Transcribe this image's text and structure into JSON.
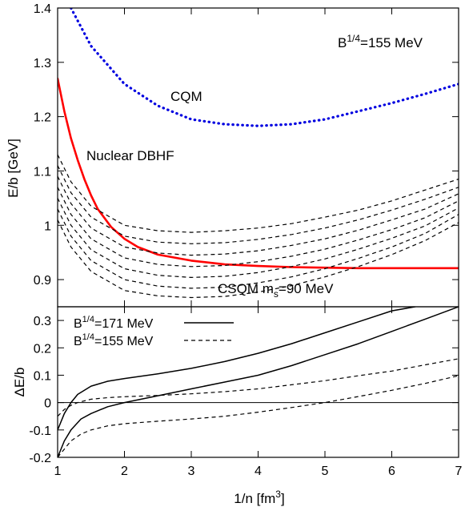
{
  "chart_data": [
    {
      "type": "line",
      "xlim": [
        1,
        7
      ],
      "ylim": [
        0.85,
        1.4
      ],
      "ylabel": "E/b [GeV]",
      "yticks": [
        "0.9",
        "1",
        "1.1",
        "1.2",
        "1.3",
        "1.4"
      ],
      "ytick_values": [
        0.9,
        1.0,
        1.1,
        1.2,
        1.3,
        1.4
      ],
      "annotations": {
        "b_base": "B",
        "b_exp": "1/4",
        "b_rest": "=155 MeV",
        "cqm": "CQM",
        "dbhf": "Nuclear DBHF",
        "csqm_main": "CSQM m",
        "csqm_sub": "s",
        "csqm_rest": "=90 MeV"
      },
      "series": [
        {
          "label": "CQM",
          "color": "#0000e0",
          "style": "dotted",
          "x": [
            1.2,
            1.5,
            2.0,
            2.5,
            3.0,
            3.5,
            4.0,
            4.5,
            5.0,
            5.5,
            6.0,
            6.5,
            7.0
          ],
          "y": [
            1.4,
            1.33,
            1.26,
            1.22,
            1.195,
            1.186,
            1.183,
            1.186,
            1.195,
            1.21,
            1.225,
            1.242,
            1.26
          ]
        },
        {
          "label": "Nuclear DBHF",
          "color": "#ff0000",
          "style": "solid",
          "x": [
            1.0,
            1.1,
            1.2,
            1.3,
            1.4,
            1.5,
            1.6,
            1.8,
            2.0,
            2.2,
            2.5,
            3.0,
            3.5,
            4.0,
            4.5,
            5.0,
            5.5,
            6.0,
            7.0
          ],
          "y": [
            1.27,
            1.21,
            1.16,
            1.12,
            1.085,
            1.055,
            1.03,
            0.997,
            0.975,
            0.96,
            0.946,
            0.935,
            0.928,
            0.925,
            0.923,
            0.922,
            0.921,
            0.921,
            0.921
          ]
        },
        {
          "color": "#000000",
          "style": "dashed",
          "x": [
            1.0,
            1.2,
            1.5,
            2.0,
            2.5,
            3.0,
            3.5,
            4.0,
            4.5,
            5.0,
            5.5,
            6.0,
            6.5,
            7.0
          ],
          "y": [
            1.13,
            1.08,
            1.035,
            1.0,
            0.99,
            0.987,
            0.99,
            0.995,
            1.003,
            1.015,
            1.028,
            1.045,
            1.065,
            1.085
          ]
        },
        {
          "color": "#000000",
          "style": "dashed",
          "x": [
            1.0,
            1.2,
            1.5,
            2.0,
            2.5,
            3.0,
            3.5,
            4.0,
            4.5,
            5.0,
            5.5,
            6.0,
            6.5,
            7.0
          ],
          "y": [
            1.11,
            1.06,
            1.015,
            0.98,
            0.969,
            0.966,
            0.968,
            0.974,
            0.983,
            0.995,
            1.01,
            1.028,
            1.048,
            1.07
          ]
        },
        {
          "color": "#000000",
          "style": "dashed",
          "x": [
            1.0,
            1.2,
            1.5,
            2.0,
            2.5,
            3.0,
            3.5,
            4.0,
            4.5,
            5.0,
            5.5,
            6.0,
            6.5,
            7.0
          ],
          "y": [
            1.09,
            1.04,
            0.995,
            0.96,
            0.949,
            0.945,
            0.947,
            0.953,
            0.963,
            0.975,
            0.991,
            1.01,
            1.03,
            1.058
          ]
        },
        {
          "color": "#000000",
          "style": "dashed",
          "x": [
            1.0,
            1.2,
            1.5,
            2.0,
            2.5,
            3.0,
            3.5,
            4.0,
            4.5,
            5.0,
            5.5,
            6.0,
            6.5,
            7.0
          ],
          "y": [
            1.07,
            1.02,
            0.975,
            0.94,
            0.928,
            0.924,
            0.926,
            0.933,
            0.943,
            0.956,
            0.973,
            0.992,
            1.014,
            1.045
          ]
        },
        {
          "color": "#000000",
          "style": "dashed",
          "x": [
            1.0,
            1.2,
            1.5,
            2.0,
            2.5,
            3.0,
            3.5,
            4.0,
            4.5,
            5.0,
            5.5,
            6.0,
            6.5,
            7.0
          ],
          "y": [
            1.05,
            1.0,
            0.955,
            0.92,
            0.908,
            0.904,
            0.906,
            0.913,
            0.924,
            0.938,
            0.956,
            0.976,
            0.999,
            1.032
          ]
        },
        {
          "color": "#000000",
          "style": "dashed",
          "x": [
            1.0,
            1.2,
            1.5,
            2.0,
            2.5,
            3.0,
            3.5,
            4.0,
            4.5,
            5.0,
            5.5,
            6.0,
            6.5,
            7.0
          ],
          "y": [
            1.03,
            0.98,
            0.935,
            0.9,
            0.888,
            0.884,
            0.886,
            0.894,
            0.905,
            0.92,
            0.939,
            0.96,
            0.985,
            1.02
          ]
        },
        {
          "color": "#000000",
          "style": "dashed",
          "x": [
            1.0,
            1.2,
            1.5,
            2.0,
            2.5,
            3.0,
            3.5,
            4.0,
            4.5,
            5.0,
            5.5,
            6.0,
            6.5,
            7.0
          ],
          "y": [
            1.01,
            0.96,
            0.915,
            0.88,
            0.87,
            0.867,
            0.869,
            0.877,
            0.889,
            0.905,
            0.924,
            0.946,
            0.972,
            1.005
          ]
        }
      ]
    },
    {
      "type": "line",
      "xlim": [
        1,
        7
      ],
      "ylim": [
        -0.2,
        0.35
      ],
      "xlabel": "1/n [fm",
      "xlabel_sup": "3",
      "xlabel_end": "]",
      "ylabel": "ΔE/b",
      "xticks": [
        "1",
        "2",
        "3",
        "4",
        "5",
        "6",
        "7"
      ],
      "xtick_values": [
        1,
        2,
        3,
        4,
        5,
        6,
        7
      ],
      "yticks": [
        "-0.2",
        "-0.1",
        "0",
        "0.1",
        "0.2",
        "0.3"
      ],
      "ytick_values": [
        -0.2,
        -0.1,
        0,
        0.1,
        0.2,
        0.3
      ],
      "zero_line": true,
      "legend": [
        {
          "base": "B",
          "sup": "1/4",
          "rest": "=171 MeV",
          "style": "solid"
        },
        {
          "base": "B",
          "sup": "1/4",
          "rest": "=155 MeV",
          "style": "dashed"
        }
      ],
      "series": [
        {
          "group": "171 MeV",
          "color": "#000000",
          "style": "solid",
          "x": [
            1.0,
            1.1,
            1.2,
            1.3,
            1.5,
            1.75,
            2.0,
            2.5,
            3.0,
            3.5,
            4.0,
            4.5,
            5.0,
            5.5,
            6.0,
            6.35
          ],
          "y": [
            -0.1,
            -0.04,
            0.0,
            0.03,
            0.06,
            0.078,
            0.088,
            0.105,
            0.125,
            0.15,
            0.18,
            0.215,
            0.255,
            0.295,
            0.335,
            0.35
          ]
        },
        {
          "group": "171 MeV",
          "color": "#000000",
          "style": "solid",
          "x": [
            1.0,
            1.1,
            1.2,
            1.35,
            1.5,
            1.75,
            2.0,
            2.5,
            3.0,
            3.5,
            4.0,
            4.5,
            5.0,
            5.5,
            6.0,
            6.5,
            7.0
          ],
          "y": [
            -0.2,
            -0.14,
            -0.1,
            -0.06,
            -0.04,
            -0.015,
            0.0,
            0.025,
            0.05,
            0.075,
            0.1,
            0.135,
            0.175,
            0.215,
            0.26,
            0.305,
            0.35
          ]
        },
        {
          "group": "155 MeV",
          "color": "#000000",
          "style": "dashed",
          "x": [
            1.0,
            1.1,
            1.2,
            1.3,
            1.5,
            1.75,
            2.0,
            2.5,
            3.0,
            3.5,
            4.0,
            4.5,
            5.0,
            5.5,
            6.0,
            6.5,
            7.0
          ],
          "y": [
            -0.05,
            -0.025,
            -0.01,
            0.0,
            0.0125,
            0.018,
            0.0215,
            0.026,
            0.032,
            0.04,
            0.05,
            0.065,
            0.08,
            0.098,
            0.115,
            0.138,
            0.16
          ]
        },
        {
          "group": "155 MeV",
          "color": "#000000",
          "style": "dashed",
          "x": [
            1.0,
            1.1,
            1.2,
            1.35,
            1.5,
            1.75,
            2.0,
            2.5,
            3.0,
            3.5,
            4.0,
            4.5,
            5.0,
            5.5,
            6.0,
            6.5,
            7.0
          ],
          "y": [
            -0.2,
            -0.17,
            -0.14,
            -0.115,
            -0.1,
            -0.085,
            -0.077,
            -0.068,
            -0.06,
            -0.05,
            -0.035,
            -0.018,
            0.0,
            0.022,
            0.045,
            0.07,
            0.098
          ]
        }
      ]
    }
  ]
}
